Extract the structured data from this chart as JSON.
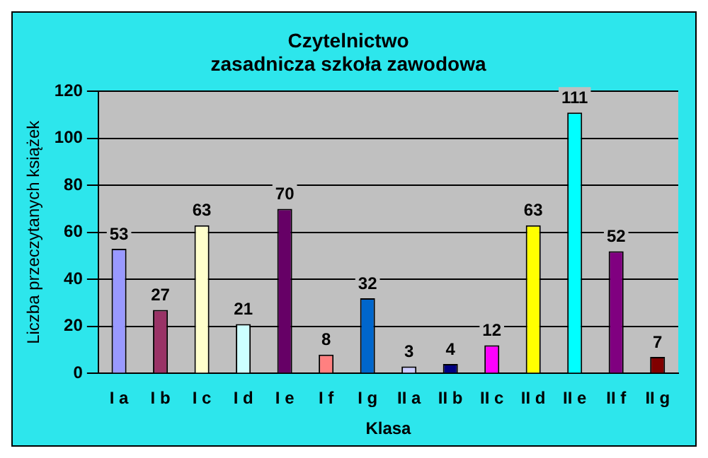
{
  "chart_data": {
    "type": "bar",
    "title": "Czytelnictwo\nzasadnicza szkoła zawodowa",
    "xlabel": "Klasa",
    "ylabel": "Liczba przeczytanych książek",
    "categories": [
      "I a",
      "I b",
      "I c",
      "I d",
      "I e",
      "I f",
      "I g",
      "II a",
      "II b",
      "II c",
      "II d",
      "II e",
      "II f",
      "II g"
    ],
    "values": [
      53,
      27,
      63,
      21,
      70,
      8,
      32,
      3,
      4,
      12,
      63,
      111,
      52,
      7
    ],
    "colors": [
      "#9999ff",
      "#993366",
      "#ffffcc",
      "#ccffff",
      "#660066",
      "#ff8080",
      "#0066cc",
      "#ccccff",
      "#000080",
      "#ff00ff",
      "#ffff00",
      "#00ffff",
      "#800080",
      "#800000"
    ],
    "ylim": [
      0,
      120
    ],
    "yticks": [
      0,
      20,
      40,
      60,
      80,
      100,
      120
    ],
    "grid": "y",
    "legend": false,
    "data_labels": true
  }
}
